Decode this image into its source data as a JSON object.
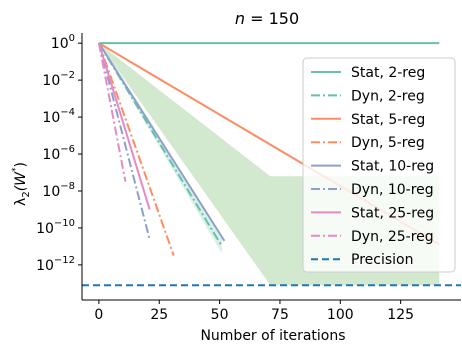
{
  "chart_data": {
    "type": "line",
    "title_prefix": "n",
    "title_suffix": " = 150",
    "xlabel": "Number of iterations",
    "ylabel_main": "λ",
    "ylabel_sub": "2",
    "ylabel_arg": "(W",
    "ylabel_star": "*",
    "ylabel_close": ")",
    "xlim": [
      -7,
      150
    ],
    "ylim_exp": [
      -13.9,
      0.55
    ],
    "yscale": "log",
    "x_ticks": [
      0,
      25,
      50,
      75,
      100,
      125
    ],
    "x_tick_labels": [
      "0",
      "25",
      "50",
      "75",
      "100",
      "125"
    ],
    "y_ticks_exp": [
      0,
      -2,
      -4,
      -6,
      -8,
      -10,
      -12
    ],
    "y_tick_base": "10",
    "y_tick_exps": [
      "0",
      "−2",
      "−4",
      "−6",
      "−8",
      "−10",
      "−12"
    ],
    "legend_position": "right",
    "precision_exp": -13.1,
    "shaded_band": {
      "color": "#b4dbb1",
      "upper_exp": [
        [
          0,
          0
        ],
        [
          71,
          -7.2
        ],
        [
          141,
          -7.2
        ]
      ],
      "lower_exp": [
        [
          0,
          0
        ],
        [
          71,
          -13.1
        ],
        [
          141,
          -13.1
        ]
      ]
    },
    "series": [
      {
        "name": "Stat, 2-reg",
        "color": "#66c2a5",
        "style": "solid",
        "x": [
          0,
          141
        ],
        "y_exp": [
          0,
          0
        ]
      },
      {
        "name": "Dyn, 2-reg",
        "color": "#66c2a5",
        "style": "dashdot",
        "x": [
          0,
          51
        ],
        "y_exp": [
          0,
          -11.0
        ],
        "band": {
          "upper_exp": [
            0,
            -10.6
          ],
          "lower_exp": [
            0,
            -11.4
          ]
        }
      },
      {
        "name": "Stat, 5-reg",
        "color": "#fc8d62",
        "style": "solid",
        "x": [
          0,
          141
        ],
        "y_exp": [
          0,
          -10.9
        ]
      },
      {
        "name": "Dyn, 5-reg",
        "color": "#fc8d62",
        "style": "dashdot",
        "x": [
          0,
          31
        ],
        "y_exp": [
          0,
          -11.5
        ]
      },
      {
        "name": "Stat, 10-reg",
        "color": "#8da0cb",
        "style": "solid",
        "x": [
          0,
          52
        ],
        "y_exp": [
          0,
          -10.7
        ]
      },
      {
        "name": "Dyn, 10-reg",
        "color": "#8da0cb",
        "style": "dashdot",
        "x": [
          0,
          21
        ],
        "y_exp": [
          0,
          -10.6
        ]
      },
      {
        "name": "Stat, 25-reg",
        "color": "#e78ac3",
        "style": "solid",
        "x": [
          0,
          21
        ],
        "y_exp": [
          0,
          -9.0
        ]
      },
      {
        "name": "Dyn, 25-reg",
        "color": "#e78ac3",
        "style": "dashdot",
        "x": [
          0,
          11
        ],
        "y_exp": [
          0,
          -7.5
        ]
      },
      {
        "name": "Precision",
        "color": "#1f77b4",
        "style": "dashed",
        "x": [
          -7,
          150
        ],
        "y_exp": [
          -13.1,
          -13.1
        ]
      }
    ]
  }
}
